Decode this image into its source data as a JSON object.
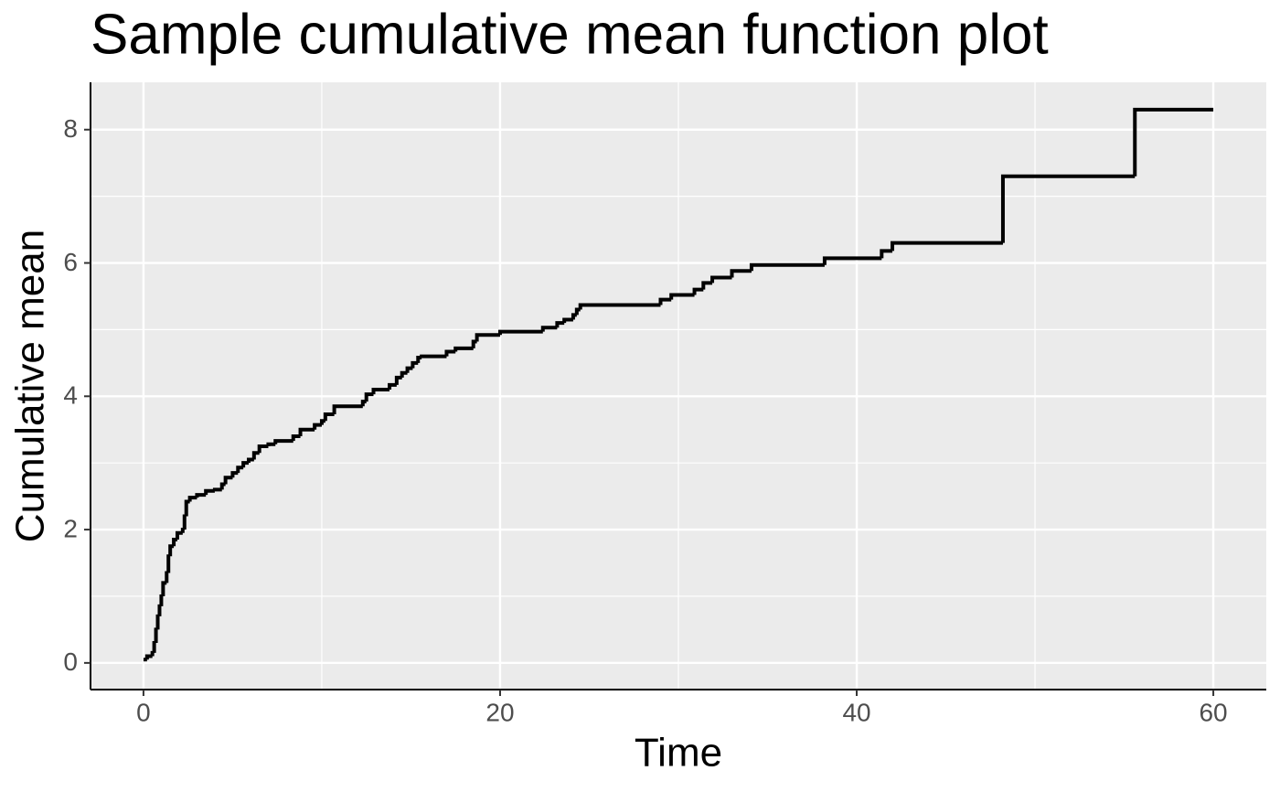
{
  "chart_data": {
    "type": "step",
    "title": "Sample cumulative mean function plot",
    "x_label": "Time",
    "y_label": "Cumulative mean",
    "x": [
      0,
      0.2,
      0.5,
      0.6,
      0.7,
      0.8,
      0.9,
      1.0,
      1.1,
      1.3,
      1.4,
      1.5,
      1.7,
      1.9,
      2.2,
      2.3,
      2.4,
      2.6,
      3.0,
      3.5,
      4.0,
      4.4,
      4.6,
      5.0,
      5.3,
      5.6,
      5.9,
      6.2,
      6.5,
      7.0,
      7.4,
      8.4,
      8.8,
      9.6,
      10.0,
      10.2,
      10.7,
      12.3,
      12.5,
      12.9,
      13.8,
      14.2,
      14.5,
      14.8,
      15.1,
      15.4,
      15.6,
      17.0,
      17.5,
      18.5,
      18.7,
      20.0,
      22.4,
      23.2,
      23.6,
      24.1,
      24.3,
      24.5,
      29.0,
      29.6,
      30.9,
      31.4,
      31.9,
      33.0,
      34.1,
      38.2,
      41.4,
      42.0,
      48.2,
      55.6,
      60.0
    ],
    "y": [
      0.05,
      0.1,
      0.15,
      0.3,
      0.5,
      0.7,
      0.85,
      1.0,
      1.2,
      1.35,
      1.6,
      1.75,
      1.85,
      1.95,
      2.0,
      2.2,
      2.42,
      2.48,
      2.52,
      2.58,
      2.6,
      2.68,
      2.78,
      2.85,
      2.93,
      3.0,
      3.05,
      3.15,
      3.25,
      3.28,
      3.33,
      3.4,
      3.5,
      3.57,
      3.63,
      3.73,
      3.85,
      3.92,
      4.03,
      4.1,
      4.17,
      4.28,
      4.35,
      4.42,
      4.5,
      4.58,
      4.6,
      4.67,
      4.72,
      4.82,
      4.92,
      4.97,
      5.03,
      5.1,
      5.15,
      5.22,
      5.3,
      5.37,
      5.45,
      5.52,
      5.6,
      5.7,
      5.78,
      5.88,
      5.97,
      6.07,
      6.18,
      6.3,
      7.3,
      8.3,
      8.3
    ],
    "color": "#000000",
    "xlim": [
      -2.97,
      62.97
    ],
    "ylim": [
      -0.4,
      8.71
    ],
    "xticks": [
      0,
      20,
      40,
      60
    ],
    "yticks": [
      0,
      2,
      4,
      6,
      8
    ],
    "x_minor_grid": [
      10,
      30,
      50
    ],
    "y_minor_grid": [
      1,
      3,
      5,
      7
    ],
    "grid": true
  }
}
